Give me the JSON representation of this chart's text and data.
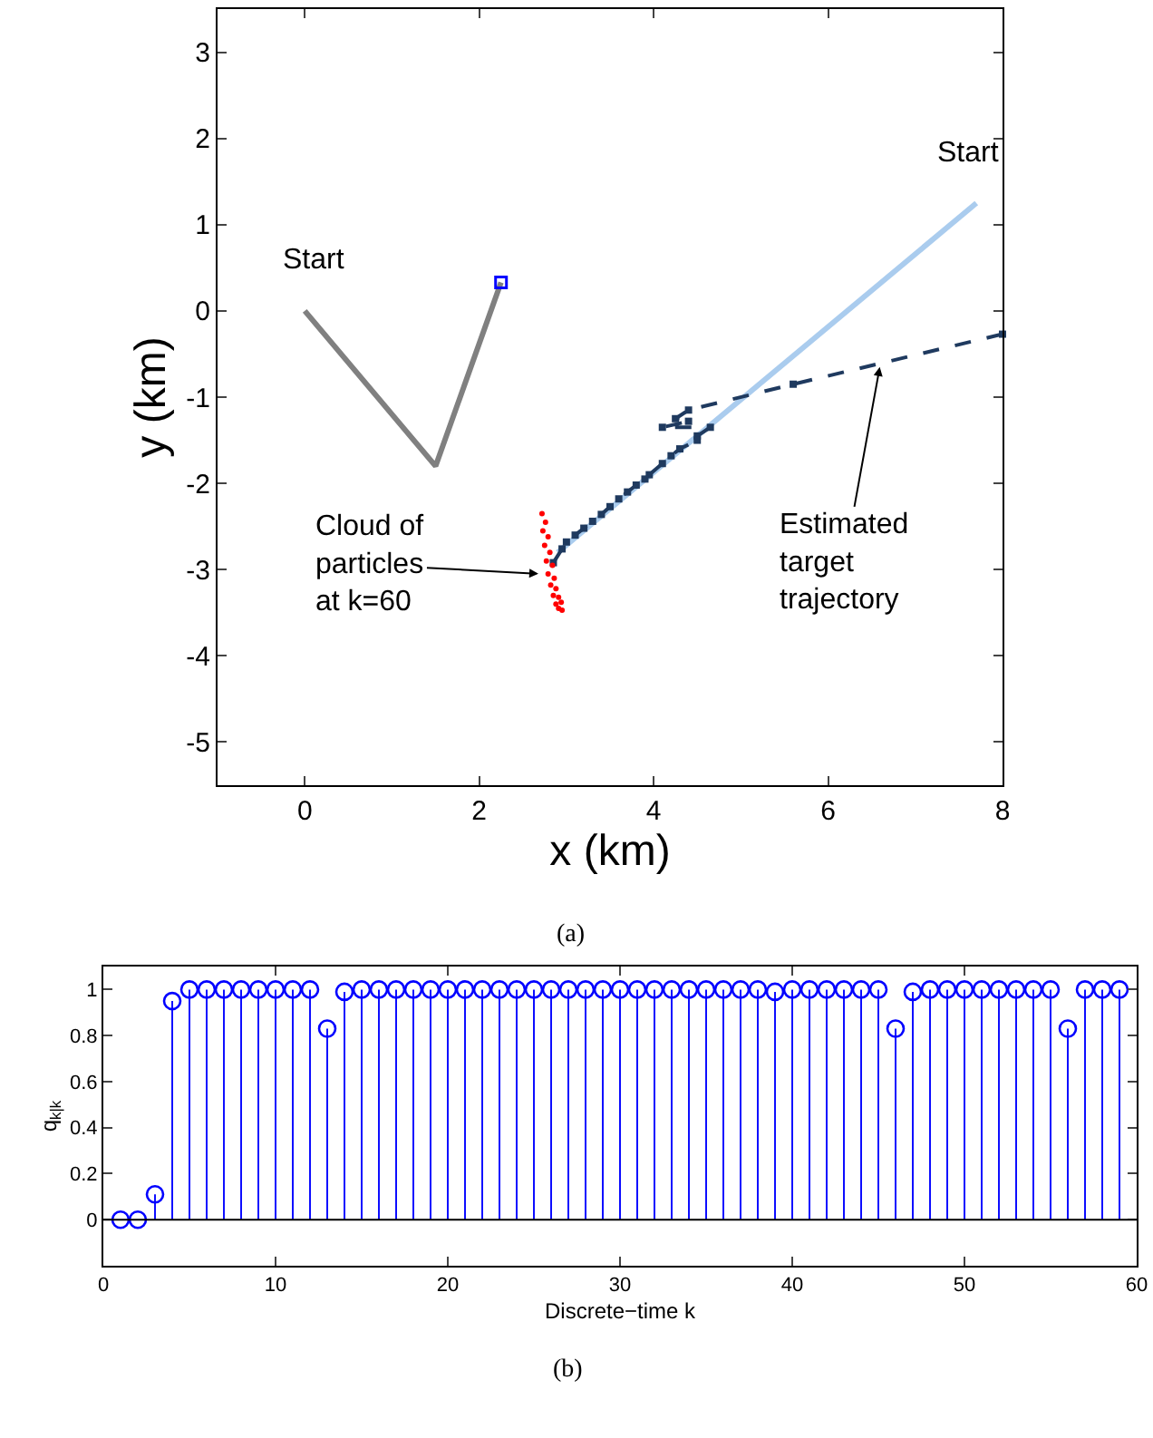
{
  "chart_data": [
    {
      "type": "line",
      "xlabel": "x (km)",
      "ylabel": "y (km)",
      "xlim": [
        -1,
        8
      ],
      "ylim": [
        -5.5,
        3.5
      ],
      "xticks": [
        0,
        2,
        4,
        6,
        8
      ],
      "yticks": [
        -5,
        -4,
        -3,
        -2,
        -1,
        0,
        1,
        2,
        3
      ],
      "grid": false,
      "series": [
        {
          "color": "#808080",
          "marker": "none",
          "x": [
            0,
            1.5,
            2.25
          ],
          "values": [
            0,
            -1.8,
            0.33
          ]
        },
        {
          "type": "scatter",
          "color": "#0000ff",
          "marker": "square",
          "x": [
            2.25
          ],
          "values": [
            0.33
          ]
        },
        {
          "color": "#aaccee",
          "marker": "none",
          "x": [
            7.7,
            2.9
          ],
          "values": [
            1.25,
            -2.8
          ]
        },
        {
          "color": "#1f3a5f",
          "marker": "square",
          "line_style": "dashed",
          "x": [
            8,
            5.6,
            4.4,
            4.25,
            4.4,
            4.1,
            4.65,
            4.5,
            4.5,
            4.3,
            4.2,
            4.1,
            3.95,
            3.9,
            3.8,
            3.7,
            3.6,
            3.5,
            3.4,
            3.3,
            3.2,
            3.1,
            3.0,
            2.95,
            2.85
          ],
          "values": [
            -0.27,
            -0.85,
            -1.15,
            -1.25,
            -1.28,
            -1.35,
            -1.35,
            -1.45,
            -1.5,
            -1.6,
            -1.68,
            -1.77,
            -1.9,
            -1.95,
            -2.02,
            -2.1,
            -2.18,
            -2.27,
            -2.36,
            -2.44,
            -2.52,
            -2.6,
            -2.68,
            -2.76,
            -2.92
          ]
        },
        {
          "type": "scatter",
          "color": "#ff0000",
          "marker": "circle",
          "x": [
            2.72,
            2.76,
            2.73,
            2.79,
            2.75,
            2.81,
            2.77,
            2.84,
            2.79,
            2.86,
            2.82,
            2.88,
            2.85,
            2.91,
            2.88,
            2.94,
            2.91,
            2.95
          ],
          "values": [
            -2.35,
            -2.45,
            -2.55,
            -2.62,
            -2.72,
            -2.8,
            -2.9,
            -2.95,
            -3.05,
            -3.1,
            -3.18,
            -3.22,
            -3.3,
            -3.32,
            -3.4,
            -3.38,
            -3.45,
            -3.47
          ]
        }
      ],
      "annotations": [
        {
          "text": "Start",
          "x": 0,
          "y": 0
        },
        {
          "text": "Start",
          "x": 7.7,
          "y": 1.25
        },
        {
          "text": "Cloud of\nparticles\nat k=60",
          "x": 2.72,
          "y": -3.05
        },
        {
          "text": "Estimated\ntarget\ntrajectory",
          "x": 6.6,
          "y": -0.61
        },
        "(a)"
      ]
    },
    {
      "type": "lollipop",
      "xlabel": "Discrete−time k",
      "ylabel": "q$_{k|k}$",
      "xlim": [
        0,
        60
      ],
      "ylim": [
        -0.2,
        1.1
      ],
      "xticks": [
        0,
        10,
        20,
        30,
        40,
        50,
        60
      ],
      "yticks": [
        0,
        0.2,
        0.4,
        0.6,
        0.8,
        1
      ],
      "grid": false,
      "marker": "circle",
      "color": "#0000ff",
      "ref_lines": [
        {
          "axis": "y",
          "value": 0,
          "color": "#000000"
        }
      ],
      "x": [
        1,
        2,
        3,
        4,
        5,
        6,
        7,
        8,
        9,
        10,
        11,
        12,
        13,
        14,
        15,
        16,
        17,
        18,
        19,
        20,
        21,
        22,
        23,
        24,
        25,
        26,
        27,
        28,
        29,
        30,
        31,
        32,
        33,
        34,
        35,
        36,
        37,
        38,
        39,
        40,
        41,
        42,
        43,
        44,
        45,
        46,
        47,
        48,
        49,
        50,
        51,
        52,
        53,
        54,
        55,
        56,
        57,
        58,
        59
      ],
      "values": [
        0,
        0,
        0.11,
        0.95,
        1,
        1,
        1,
        1,
        1,
        1,
        1,
        1,
        0.83,
        0.99,
        1,
        1,
        1,
        1,
        1,
        1,
        1,
        1,
        1,
        1,
        1,
        1,
        1,
        1,
        1,
        1,
        1,
        1,
        1,
        1,
        1,
        1,
        1,
        1,
        0.99,
        1,
        1,
        1,
        1,
        1,
        1,
        0.83,
        0.99,
        1,
        1,
        1,
        1,
        1,
        1,
        1,
        1,
        0.83,
        1,
        1,
        1
      ],
      "annotations": [
        "(b)"
      ]
    }
  ]
}
